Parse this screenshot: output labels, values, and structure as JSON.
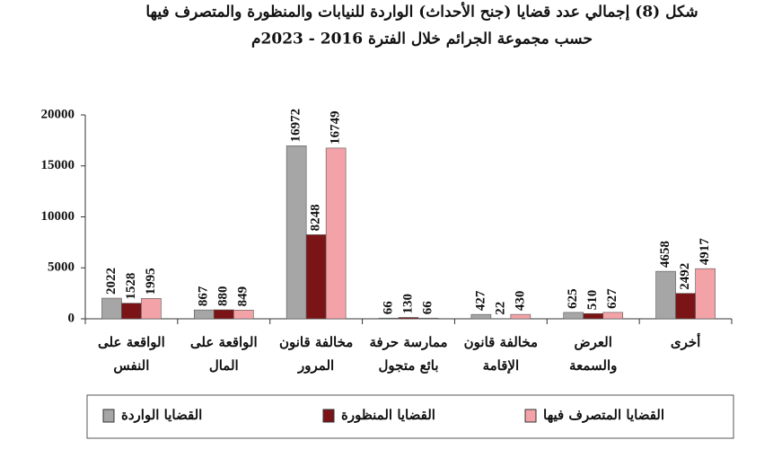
{
  "chart_data": {
    "type": "bar",
    "title": "شكل (8) إجمالي عدد قضايا (جنح الأحداث) الواردة للنيابات والمنظورة والمتصرف فيها",
    "subtitle": "حسب مجموعة الجرائم خلال الفترة 2016 - 2023م",
    "categories": [
      [
        "الواقعة على",
        "النفس"
      ],
      [
        "الواقعة على",
        "المال"
      ],
      [
        "مخالفة قانون",
        "المرور"
      ],
      [
        "ممارسة حرفة",
        "بائع متجول"
      ],
      [
        "مخالفة قانون",
        "الإقامة"
      ],
      [
        "العرض",
        "والسمعة"
      ],
      [
        "أخرى"
      ]
    ],
    "series": [
      {
        "name": "القضايا الواردة",
        "color": "#a6a6a6",
        "values": [
          2022,
          867,
          16972,
          66,
          427,
          625,
          4658
        ]
      },
      {
        "name": "القضايا المنظورة",
        "color": "#7b1416",
        "values": [
          1528,
          880,
          8248,
          130,
          22,
          510,
          2492
        ]
      },
      {
        "name": "القضايا المتصرف فيها",
        "color": "#f3a3a8",
        "values": [
          1995,
          849,
          16749,
          66,
          430,
          627,
          4917
        ]
      }
    ],
    "ylim": [
      0,
      20000
    ],
    "yticks": [
      0,
      5000,
      10000,
      15000,
      20000
    ]
  }
}
